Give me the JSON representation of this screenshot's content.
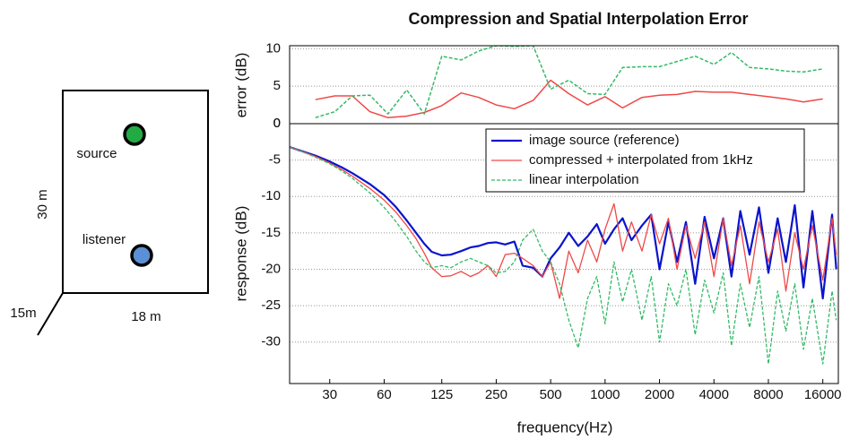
{
  "diagram": {
    "source": "source",
    "listener": "listener",
    "height": "30 m",
    "width": "18 m",
    "depth": "15m"
  },
  "chart_data": [
    {
      "type": "line",
      "title": "Compression and Spatial Interpolation Error",
      "y_label": "error (dB)",
      "log_x": true,
      "xlim": [
        18,
        19500
      ],
      "ylim": [
        0,
        10.4
      ],
      "yticks": [
        0,
        5,
        10
      ],
      "grid": true,
      "series": [
        {
          "name": "compressed + interpolated from 1kHz",
          "color": "#f04848",
          "dashed": false,
          "x": [
            25,
            32,
            40,
            50,
            63,
            80,
            100,
            125,
            160,
            200,
            250,
            315,
            400,
            500,
            630,
            800,
            1000,
            1250,
            1600,
            2000,
            2500,
            3150,
            4000,
            5000,
            6300,
            8000,
            10000,
            12500,
            16000
          ],
          "values": [
            3.2,
            3.7,
            3.7,
            1.6,
            0.8,
            1.0,
            1.5,
            2.4,
            4.1,
            3.5,
            2.5,
            2.0,
            3.1,
            5.8,
            4.0,
            2.5,
            3.6,
            2.1,
            3.5,
            3.8,
            3.9,
            4.3,
            4.2,
            4.2,
            3.9,
            3.6,
            3.3,
            2.9,
            3.3
          ]
        },
        {
          "name": "linear interpolation",
          "color": "#33bb66",
          "dashed": true,
          "x": [
            25,
            32,
            40,
            50,
            63,
            80,
            100,
            125,
            160,
            200,
            250,
            315,
            400,
            500,
            630,
            800,
            1000,
            1250,
            1600,
            2000,
            2500,
            3150,
            4000,
            5000,
            6300,
            8000,
            10000,
            12500,
            16000
          ],
          "values": [
            0.8,
            1.6,
            3.7,
            3.8,
            1.3,
            4.5,
            1.3,
            9.0,
            8.5,
            9.7,
            10.4,
            10.3,
            10.4,
            4.6,
            5.8,
            4.0,
            3.9,
            7.5,
            7.6,
            7.6,
            8.3,
            9.0,
            7.9,
            9.5,
            7.5,
            7.3,
            7.0,
            6.9,
            7.3
          ]
        }
      ]
    },
    {
      "type": "line",
      "y_label": "response (dB)",
      "x_label": "frequency(Hz)",
      "log_x": true,
      "xlim": [
        18,
        19500
      ],
      "ylim": [
        -35.7,
        0
      ],
      "xticks": [
        30,
        60,
        125,
        250,
        500,
        1000,
        2000,
        4000,
        8000,
        16000
      ],
      "yticks": [
        0,
        -5,
        -10,
        -15,
        -20,
        -25,
        -30
      ],
      "grid": true,
      "legend": "top right",
      "x": [
        18,
        20,
        25,
        30,
        35,
        40,
        50,
        60,
        70,
        80,
        90,
        100,
        110,
        125,
        140,
        160,
        180,
        200,
        225,
        250,
        280,
        315,
        350,
        400,
        450,
        500,
        560,
        630,
        710,
        800,
        900,
        1000,
        1120,
        1250,
        1400,
        1600,
        1800,
        2000,
        2240,
        2500,
        2800,
        3150,
        3550,
        4000,
        4500,
        5000,
        5600,
        6300,
        7100,
        8000,
        9000,
        10000,
        11200,
        12500,
        14000,
        16000,
        18000,
        19000
      ],
      "series": [
        {
          "name": "image source (reference)",
          "color": "#0a14cc",
          "dashed": false,
          "width": 2.2,
          "values": [
            -3.2,
            -3.6,
            -4.4,
            -5.2,
            -6.0,
            -6.8,
            -8.3,
            -9.8,
            -11.5,
            -13.3,
            -15.0,
            -16.5,
            -17.6,
            -18.1,
            -18.0,
            -17.5,
            -17.0,
            -16.8,
            -16.4,
            -16.3,
            -16.6,
            -16.2,
            -19.5,
            -19.8,
            -21.0,
            -18.5,
            -17.0,
            -15.0,
            -16.8,
            -15.5,
            -13.8,
            -16.5,
            -14.5,
            -13.0,
            -16.0,
            -14.0,
            -12.5,
            -20.0,
            -13.5,
            -19.0,
            -13.5,
            -22.0,
            -12.8,
            -18.5,
            -13.0,
            -21.0,
            -12.0,
            -18.0,
            -11.5,
            -20.5,
            -13.0,
            -19.0,
            -11.2,
            -22.5,
            -12.0,
            -24.0,
            -12.5,
            -20.0
          ]
        },
        {
          "name": "compressed + interpolated from 1kHz",
          "color": "#f04848",
          "dashed": false,
          "width": 1.3,
          "values": [
            -3.2,
            -3.6,
            -4.5,
            -5.4,
            -6.3,
            -7.2,
            -8.9,
            -10.5,
            -12.2,
            -14.0,
            -15.8,
            -17.8,
            -19.8,
            -21.0,
            -20.9,
            -20.3,
            -21.0,
            -20.5,
            -19.5,
            -21.0,
            -18.0,
            -17.8,
            -18.5,
            -19.5,
            -21.0,
            -19.0,
            -24.0,
            -17.5,
            -20.5,
            -16.0,
            -19.0,
            -14.5,
            -11.0,
            -17.5,
            -13.5,
            -17.5,
            -12.5,
            -16.5,
            -13.0,
            -20.0,
            -14.0,
            -18.5,
            -13.5,
            -21.0,
            -13.0,
            -19.5,
            -14.0,
            -22.0,
            -13.5,
            -19.0,
            -14.5,
            -23.0,
            -15.0,
            -20.0,
            -14.0,
            -21.5,
            -13.0,
            -18.0
          ]
        },
        {
          "name": "linear interpolation",
          "color": "#33bb66",
          "dashed": true,
          "width": 1.3,
          "values": [
            -3.2,
            -3.6,
            -4.6,
            -5.5,
            -6.5,
            -7.5,
            -9.5,
            -11.5,
            -13.5,
            -15.5,
            -17.5,
            -19.0,
            -19.8,
            -19.5,
            -19.8,
            -19.0,
            -18.5,
            -19.0,
            -19.5,
            -20.5,
            -20.3,
            -19.0,
            -16.0,
            -14.5,
            -17.5,
            -19.0,
            -22.0,
            -27.0,
            -30.8,
            -24.0,
            -21.0,
            -27.5,
            -19.0,
            -24.5,
            -20.0,
            -27.0,
            -21.0,
            -30.0,
            -22.0,
            -25.0,
            -20.0,
            -29.0,
            -21.5,
            -26.0,
            -20.5,
            -30.5,
            -22.0,
            -28.0,
            -21.0,
            -33.0,
            -23.0,
            -28.5,
            -22.0,
            -31.0,
            -24.0,
            -33.0,
            -23.0,
            -27.0
          ]
        }
      ]
    }
  ]
}
